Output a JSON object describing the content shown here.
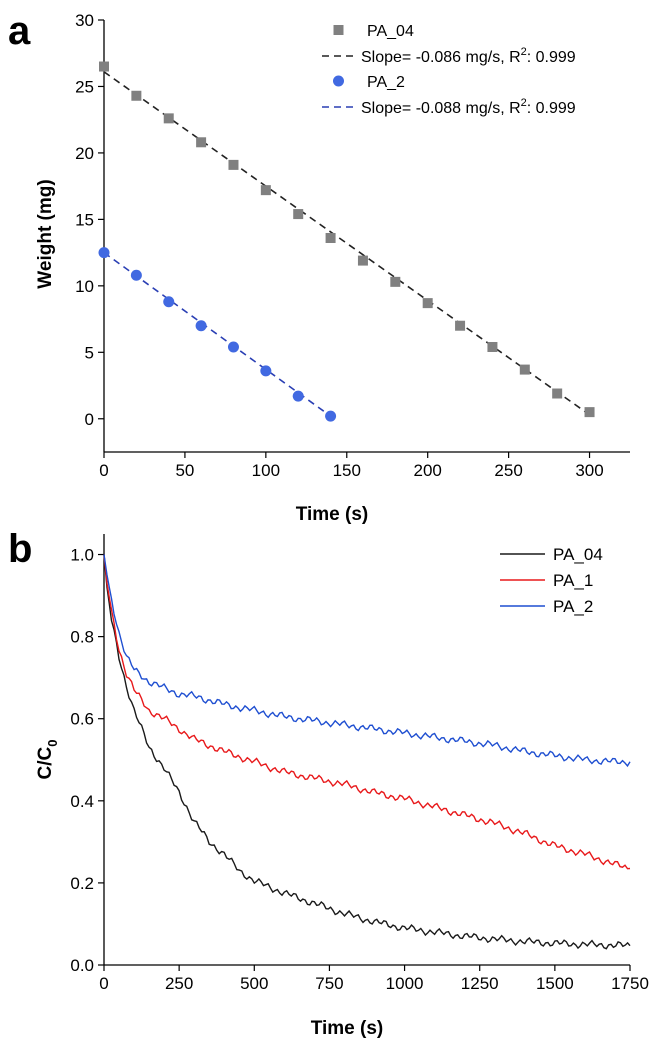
{
  "panels": {
    "a": {
      "letter": "a"
    },
    "b": {
      "letter": "b"
    }
  },
  "chart_data": [
    {
      "type": "scatter",
      "panel": "a",
      "xlabel": "Time (s)",
      "ylabel": "Weight (mg)",
      "xlim": [
        0,
        325
      ],
      "ylim": [
        -2.5,
        30
      ],
      "xticks": [
        0,
        50,
        100,
        150,
        200,
        250,
        300
      ],
      "yticks": [
        0,
        5,
        10,
        15,
        20,
        25,
        30
      ],
      "legend_position": "top-right",
      "series": [
        {
          "name": "PA_04",
          "marker": "square",
          "color": "#808080",
          "x": [
            0,
            20,
            40,
            60,
            80,
            100,
            120,
            140,
            160,
            180,
            200,
            220,
            240,
            260,
            280,
            300
          ],
          "y": [
            26.5,
            24.3,
            22.6,
            20.8,
            19.1,
            17.2,
            15.4,
            13.6,
            11.9,
            10.3,
            8.7,
            7.0,
            5.4,
            3.7,
            1.9,
            0.5
          ]
        },
        {
          "name": "PA_2",
          "marker": "circle",
          "color": "#4169e1",
          "x": [
            0,
            20,
            40,
            60,
            80,
            100,
            120,
            140
          ],
          "y": [
            12.5,
            10.8,
            8.8,
            7.0,
            5.4,
            3.6,
            1.7,
            0.2
          ]
        }
      ],
      "fits": [
        {
          "label_main": "Slope= -0.086 mg/s, R",
          "label_sup": "2",
          "label_tail": ": 0.999",
          "color": "#222222",
          "x": [
            0,
            300
          ],
          "y": [
            26.1,
            0.3
          ]
        },
        {
          "label_main": "Slope= -0.088 mg/s, R",
          "label_sup": "2",
          "label_tail": ": 0.999",
          "color": "#2a3fb4",
          "x": [
            0,
            140
          ],
          "y": [
            12.5,
            0.2
          ]
        }
      ]
    },
    {
      "type": "line",
      "panel": "b",
      "xlabel": "Time (s)",
      "ylabel_main": "C/C",
      "ylabel_sub": "0",
      "xlim": [
        0,
        1750
      ],
      "ylim": [
        0,
        1.05
      ],
      "xticks": [
        0,
        250,
        500,
        750,
        1000,
        1250,
        1500,
        1750
      ],
      "yticks": [
        0.0,
        0.2,
        0.4,
        0.6,
        0.8,
        1.0
      ],
      "ytick_labels": [
        "0.0",
        "0.2",
        "0.4",
        "0.6",
        "0.8",
        "1.0"
      ],
      "legend_position": "top-right",
      "series": [
        {
          "name": "PA_04",
          "color": "#1a1a1a",
          "x": [
            0,
            10,
            25,
            50,
            75,
            100,
            150,
            200,
            250,
            300,
            350,
            400,
            450,
            500,
            600,
            700,
            800,
            900,
            1000,
            1100,
            1200,
            1300,
            1400,
            1500,
            1600,
            1750
          ],
          "y": [
            1.0,
            0.92,
            0.84,
            0.75,
            0.68,
            0.62,
            0.53,
            0.48,
            0.42,
            0.35,
            0.3,
            0.27,
            0.23,
            0.205,
            0.175,
            0.15,
            0.125,
            0.105,
            0.09,
            0.08,
            0.07,
            0.063,
            0.057,
            0.053,
            0.05,
            0.047
          ]
        },
        {
          "name": "PA_1",
          "color": "#e8191b",
          "x": [
            0,
            10,
            25,
            50,
            75,
            100,
            150,
            200,
            250,
            300,
            400,
            500,
            600,
            700,
            800,
            900,
            1000,
            1100,
            1200,
            1300,
            1400,
            1500,
            1600,
            1700,
            1750
          ],
          "y": [
            1.0,
            0.93,
            0.86,
            0.77,
            0.71,
            0.67,
            0.62,
            0.6,
            0.575,
            0.55,
            0.52,
            0.495,
            0.47,
            0.455,
            0.44,
            0.42,
            0.405,
            0.385,
            0.365,
            0.345,
            0.32,
            0.29,
            0.27,
            0.245,
            0.235
          ]
        },
        {
          "name": "PA_2",
          "color": "#1f4fd1",
          "x": [
            0,
            10,
            25,
            50,
            75,
            100,
            150,
            200,
            250,
            300,
            400,
            500,
            600,
            700,
            800,
            900,
            1000,
            1100,
            1200,
            1300,
            1400,
            1500,
            1600,
            1700,
            1750
          ],
          "y": [
            1.0,
            0.95,
            0.89,
            0.81,
            0.75,
            0.72,
            0.69,
            0.675,
            0.66,
            0.655,
            0.635,
            0.62,
            0.605,
            0.595,
            0.585,
            0.575,
            0.565,
            0.555,
            0.545,
            0.535,
            0.52,
            0.51,
            0.5,
            0.495,
            0.495
          ]
        }
      ]
    }
  ]
}
